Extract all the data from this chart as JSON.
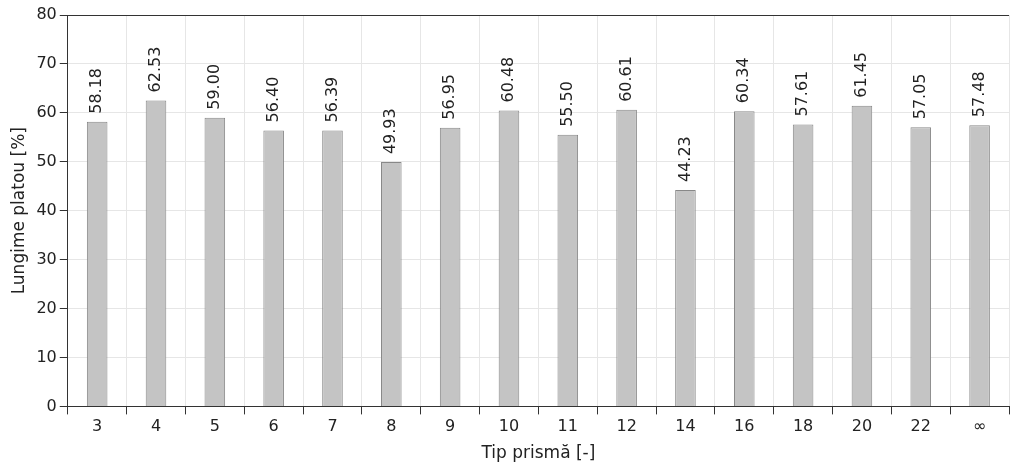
{
  "chart_data": {
    "type": "bar",
    "xlabel": "Tip prismă [-]",
    "ylabel": "Lungime platou [%]",
    "categories": [
      "3",
      "4",
      "5",
      "6",
      "7",
      "8",
      "9",
      "10",
      "11",
      "12",
      "14",
      "16",
      "18",
      "20",
      "22",
      "∞"
    ],
    "values": [
      58.18,
      62.53,
      59.0,
      56.4,
      56.39,
      49.93,
      56.95,
      60.48,
      55.5,
      60.61,
      44.23,
      60.34,
      57.61,
      61.45,
      57.05,
      57.48
    ],
    "value_labels": [
      "58.18",
      "62.53",
      "59.00",
      "56.40",
      "56.39",
      "49.93",
      "56.95",
      "60.48",
      "55.50",
      "60.61",
      "44.23",
      "60.34",
      "57.61",
      "61.45",
      "57.05",
      "57.48"
    ],
    "color": "#c4c4c4",
    "ylim": [
      0,
      80
    ],
    "yticks": [
      0,
      10,
      20,
      30,
      40,
      50,
      60,
      70,
      80
    ],
    "grid": true,
    "legend": false
  }
}
